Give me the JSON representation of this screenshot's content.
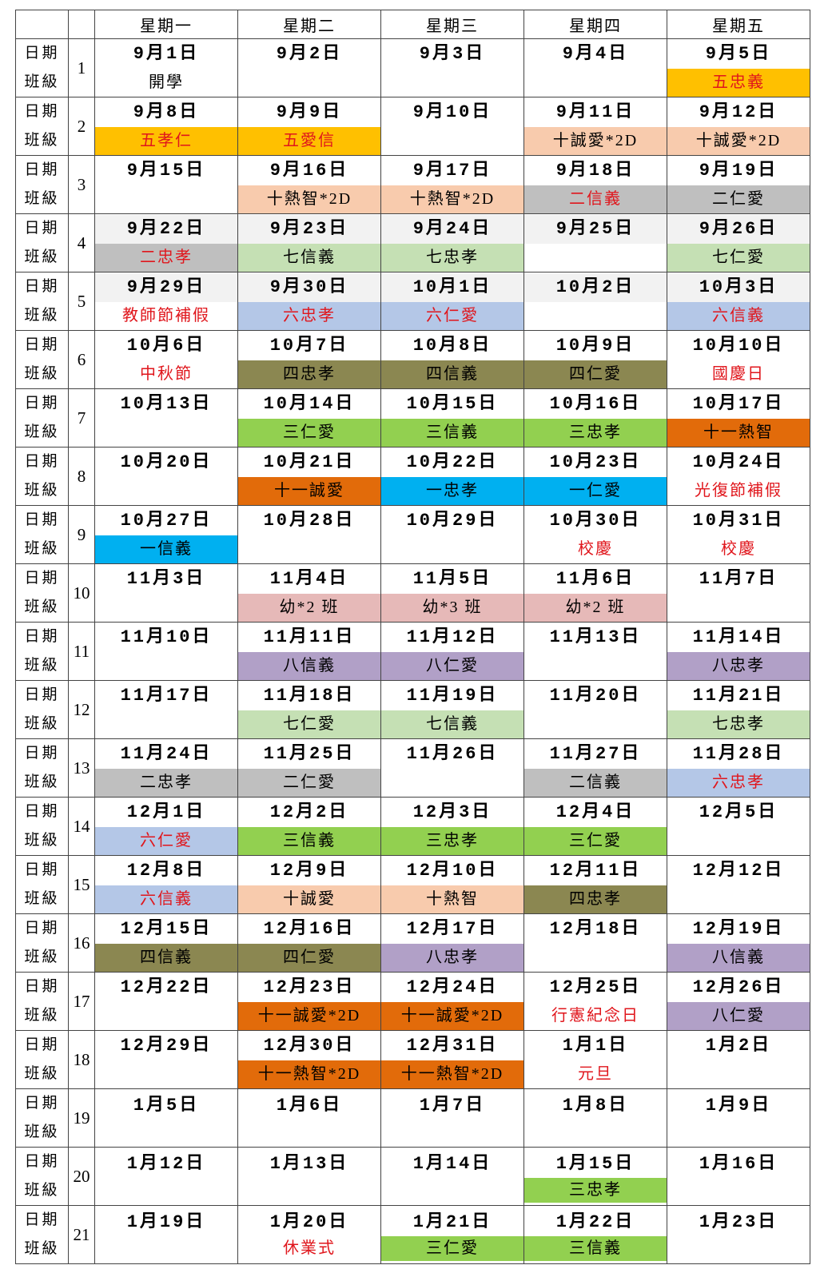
{
  "header": {
    "days": [
      "星期一",
      "星期二",
      "星期三",
      "星期四",
      "星期五"
    ]
  },
  "row_labels": {
    "date": "日期",
    "class": "班級"
  },
  "colors": {
    "gold": "#ffc000",
    "peach": "#f8cbad",
    "gray": "#bfbfbf",
    "lg": "#c5e0b4",
    "lb": "#b4c7e7",
    "olive": "#8b8751",
    "green": "#92d050",
    "orange": "#e26b0a",
    "cyan": "#00b0f0",
    "pink": "#e6b9b8",
    "purple": "#b1a0c7",
    "red_text": "#e0161c"
  },
  "weeks": [
    {
      "no": "1",
      "days": [
        {
          "d": "9月1日",
          "t": "開學"
        },
        {
          "d": "9月2日"
        },
        {
          "d": "9月3日"
        },
        {
          "d": "9月4日"
        },
        {
          "d": "9月5日",
          "t": "五忠義",
          "bg": "gold",
          "red": true
        }
      ]
    },
    {
      "no": "2",
      "days": [
        {
          "d": "9月8日",
          "t": "五孝仁",
          "bg": "gold",
          "red": true
        },
        {
          "d": "9月9日",
          "t": "五愛信",
          "bg": "gold",
          "red": true
        },
        {
          "d": "9月10日"
        },
        {
          "d": "9月11日",
          "t": "十誠愛*2D",
          "bg": "peach"
        },
        {
          "d": "9月12日",
          "t": "十誠愛*2D",
          "bg": "peach"
        }
      ]
    },
    {
      "no": "3",
      "days": [
        {
          "d": "9月15日"
        },
        {
          "d": "9月16日",
          "t": "十熱智*2D",
          "bg": "peach"
        },
        {
          "d": "9月17日",
          "t": "十熱智*2D",
          "bg": "peach"
        },
        {
          "d": "9月18日",
          "t": "二信義",
          "bg": "gray",
          "red": true
        },
        {
          "d": "9月19日",
          "t": "二仁愛",
          "bg": "gray"
        }
      ]
    },
    {
      "no": "4",
      "graydate": true,
      "days": [
        {
          "d": "9月22日",
          "t": "二忠孝",
          "bg": "gray",
          "red": true
        },
        {
          "d": "9月23日",
          "t": "七信義",
          "bg": "lg"
        },
        {
          "d": "9月24日",
          "t": "七忠孝",
          "bg": "lg"
        },
        {
          "d": "9月25日"
        },
        {
          "d": "9月26日",
          "t": "七仁愛",
          "bg": "lg"
        }
      ]
    },
    {
      "no": "5",
      "graydate": true,
      "days": [
        {
          "d": "9月29日",
          "t": "教師節補假",
          "red": true
        },
        {
          "d": "9月30日",
          "t": "六忠孝",
          "bg": "lb",
          "red": true
        },
        {
          "d": "10月1日",
          "t": "六仁愛",
          "bg": "lb",
          "red": true
        },
        {
          "d": "10月2日"
        },
        {
          "d": "10月3日",
          "t": "六信義",
          "bg": "lb",
          "red": true
        }
      ]
    },
    {
      "no": "6",
      "days": [
        {
          "d": "10月6日",
          "t": "中秋節",
          "red": true
        },
        {
          "d": "10月7日",
          "t": "四忠孝",
          "bg": "olive"
        },
        {
          "d": "10月8日",
          "t": "四信義",
          "bg": "olive"
        },
        {
          "d": "10月9日",
          "t": "四仁愛",
          "bg": "olive"
        },
        {
          "d": "10月10日",
          "t": "國慶日",
          "red": true
        }
      ]
    },
    {
      "no": "7",
      "days": [
        {
          "d": "10月13日"
        },
        {
          "d": "10月14日",
          "t": "三仁愛",
          "bg": "green"
        },
        {
          "d": "10月15日",
          "t": "三信義",
          "bg": "green"
        },
        {
          "d": "10月16日",
          "t": "三忠孝",
          "bg": "green"
        },
        {
          "d": "10月17日",
          "t": "十一熱智",
          "bg": "orange"
        }
      ]
    },
    {
      "no": "8",
      "days": [
        {
          "d": "10月20日"
        },
        {
          "d": "10月21日",
          "t": "十一誠愛",
          "bg": "orange"
        },
        {
          "d": "10月22日",
          "t": "一忠孝",
          "bg": "cyan"
        },
        {
          "d": "10月23日",
          "t": "一仁愛",
          "bg": "cyan"
        },
        {
          "d": "10月24日",
          "t": "光復節補假",
          "red": true
        }
      ]
    },
    {
      "no": "9",
      "days": [
        {
          "d": "10月27日",
          "t": "一信義",
          "bg": "cyan"
        },
        {
          "d": "10月28日"
        },
        {
          "d": "10月29日"
        },
        {
          "d": "10月30日",
          "t": "校慶",
          "red": true
        },
        {
          "d": "10月31日",
          "t": "校慶",
          "red": true
        }
      ]
    },
    {
      "no": "10",
      "days": [
        {
          "d": "11月3日"
        },
        {
          "d": "11月4日",
          "t": "幼*2 班",
          "bg": "pink"
        },
        {
          "d": "11月5日",
          "t": "幼*3 班",
          "bg": "pink"
        },
        {
          "d": "11月6日",
          "t": "幼*2 班",
          "bg": "pink"
        },
        {
          "d": "11月7日"
        }
      ]
    },
    {
      "no": "11",
      "days": [
        {
          "d": "11月10日"
        },
        {
          "d": "11月11日",
          "t": "八信義",
          "bg": "purple"
        },
        {
          "d": "11月12日",
          "t": "八仁愛",
          "bg": "purple"
        },
        {
          "d": "11月13日"
        },
        {
          "d": "11月14日",
          "t": "八忠孝",
          "bg": "purple"
        }
      ]
    },
    {
      "no": "12",
      "days": [
        {
          "d": "11月17日"
        },
        {
          "d": "11月18日",
          "t": "七仁愛",
          "bg": "lg"
        },
        {
          "d": "11月19日",
          "t": "七信義",
          "bg": "lg"
        },
        {
          "d": "11月20日"
        },
        {
          "d": "11月21日",
          "t": "七忠孝",
          "bg": "lg"
        }
      ]
    },
    {
      "no": "13",
      "days": [
        {
          "d": "11月24日",
          "t": "二忠孝",
          "bg": "gray"
        },
        {
          "d": "11月25日",
          "t": "二仁愛",
          "bg": "gray"
        },
        {
          "d": "11月26日"
        },
        {
          "d": "11月27日",
          "t": "二信義",
          "bg": "gray"
        },
        {
          "d": "11月28日",
          "t": "六忠孝",
          "bg": "lb",
          "red": true
        }
      ]
    },
    {
      "no": "14",
      "days": [
        {
          "d": "12月1日",
          "t": "六仁愛",
          "bg": "lb",
          "red": true
        },
        {
          "d": "12月2日",
          "t": "三信義",
          "bg": "green"
        },
        {
          "d": "12月3日",
          "t": "三忠孝",
          "bg": "green"
        },
        {
          "d": "12月4日",
          "t": "三仁愛",
          "bg": "green"
        },
        {
          "d": "12月5日"
        }
      ]
    },
    {
      "no": "15",
      "days": [
        {
          "d": "12月8日",
          "t": "六信義",
          "bg": "lb",
          "red": true
        },
        {
          "d": "12月9日",
          "t": "十誠愛",
          "bg": "peach"
        },
        {
          "d": "12月10日",
          "t": "十熱智",
          "bg": "peach"
        },
        {
          "d": "12月11日",
          "t": "四忠孝",
          "bg": "olive"
        },
        {
          "d": "12月12日"
        }
      ]
    },
    {
      "no": "16",
      "days": [
        {
          "d": "12月15日",
          "t": "四信義",
          "bg": "olive"
        },
        {
          "d": "12月16日",
          "t": "四仁愛",
          "bg": "olive"
        },
        {
          "d": "12月17日",
          "t": "八忠孝",
          "bg": "purple"
        },
        {
          "d": "12月18日"
        },
        {
          "d": "12月19日",
          "t": "八信義",
          "bg": "purple"
        }
      ]
    },
    {
      "no": "17",
      "days": [
        {
          "d": "12月22日"
        },
        {
          "d": "12月23日",
          "t": "十一誠愛*2D",
          "bg": "orange"
        },
        {
          "d": "12月24日",
          "t": "十一誠愛*2D",
          "bg": "orange"
        },
        {
          "d": "12月25日",
          "t": "行憲紀念日",
          "red": true
        },
        {
          "d": "12月26日",
          "t": "八仁愛",
          "bg": "purple"
        }
      ]
    },
    {
      "no": "18",
      "days": [
        {
          "d": "12月29日"
        },
        {
          "d": "12月30日",
          "t": "十一熱智*2D",
          "bg": "orange"
        },
        {
          "d": "12月31日",
          "t": "十一熱智*2D",
          "bg": "orange"
        },
        {
          "d": "1月1日",
          "t": "元旦",
          "red": true
        },
        {
          "d": "1月2日"
        }
      ]
    },
    {
      "no": "19",
      "short": true,
      "days": [
        {
          "d": "1月5日"
        },
        {
          "d": "1月6日"
        },
        {
          "d": "1月7日"
        },
        {
          "d": "1月8日"
        },
        {
          "d": "1月9日"
        }
      ]
    },
    {
      "no": "20",
      "short": true,
      "days": [
        {
          "d": "1月12日"
        },
        {
          "d": "1月13日"
        },
        {
          "d": "1月14日"
        },
        {
          "d": "1月15日",
          "t": "三忠孝",
          "bg": "green"
        },
        {
          "d": "1月16日"
        }
      ]
    },
    {
      "no": "21",
      "short": true,
      "days": [
        {
          "d": "1月19日"
        },
        {
          "d": "1月20日",
          "t": "休業式",
          "red": true
        },
        {
          "d": "1月21日",
          "t": "三仁愛",
          "bg": "green"
        },
        {
          "d": "1月22日",
          "t": "三信義",
          "bg": "green"
        },
        {
          "d": "1月23日"
        }
      ]
    }
  ]
}
